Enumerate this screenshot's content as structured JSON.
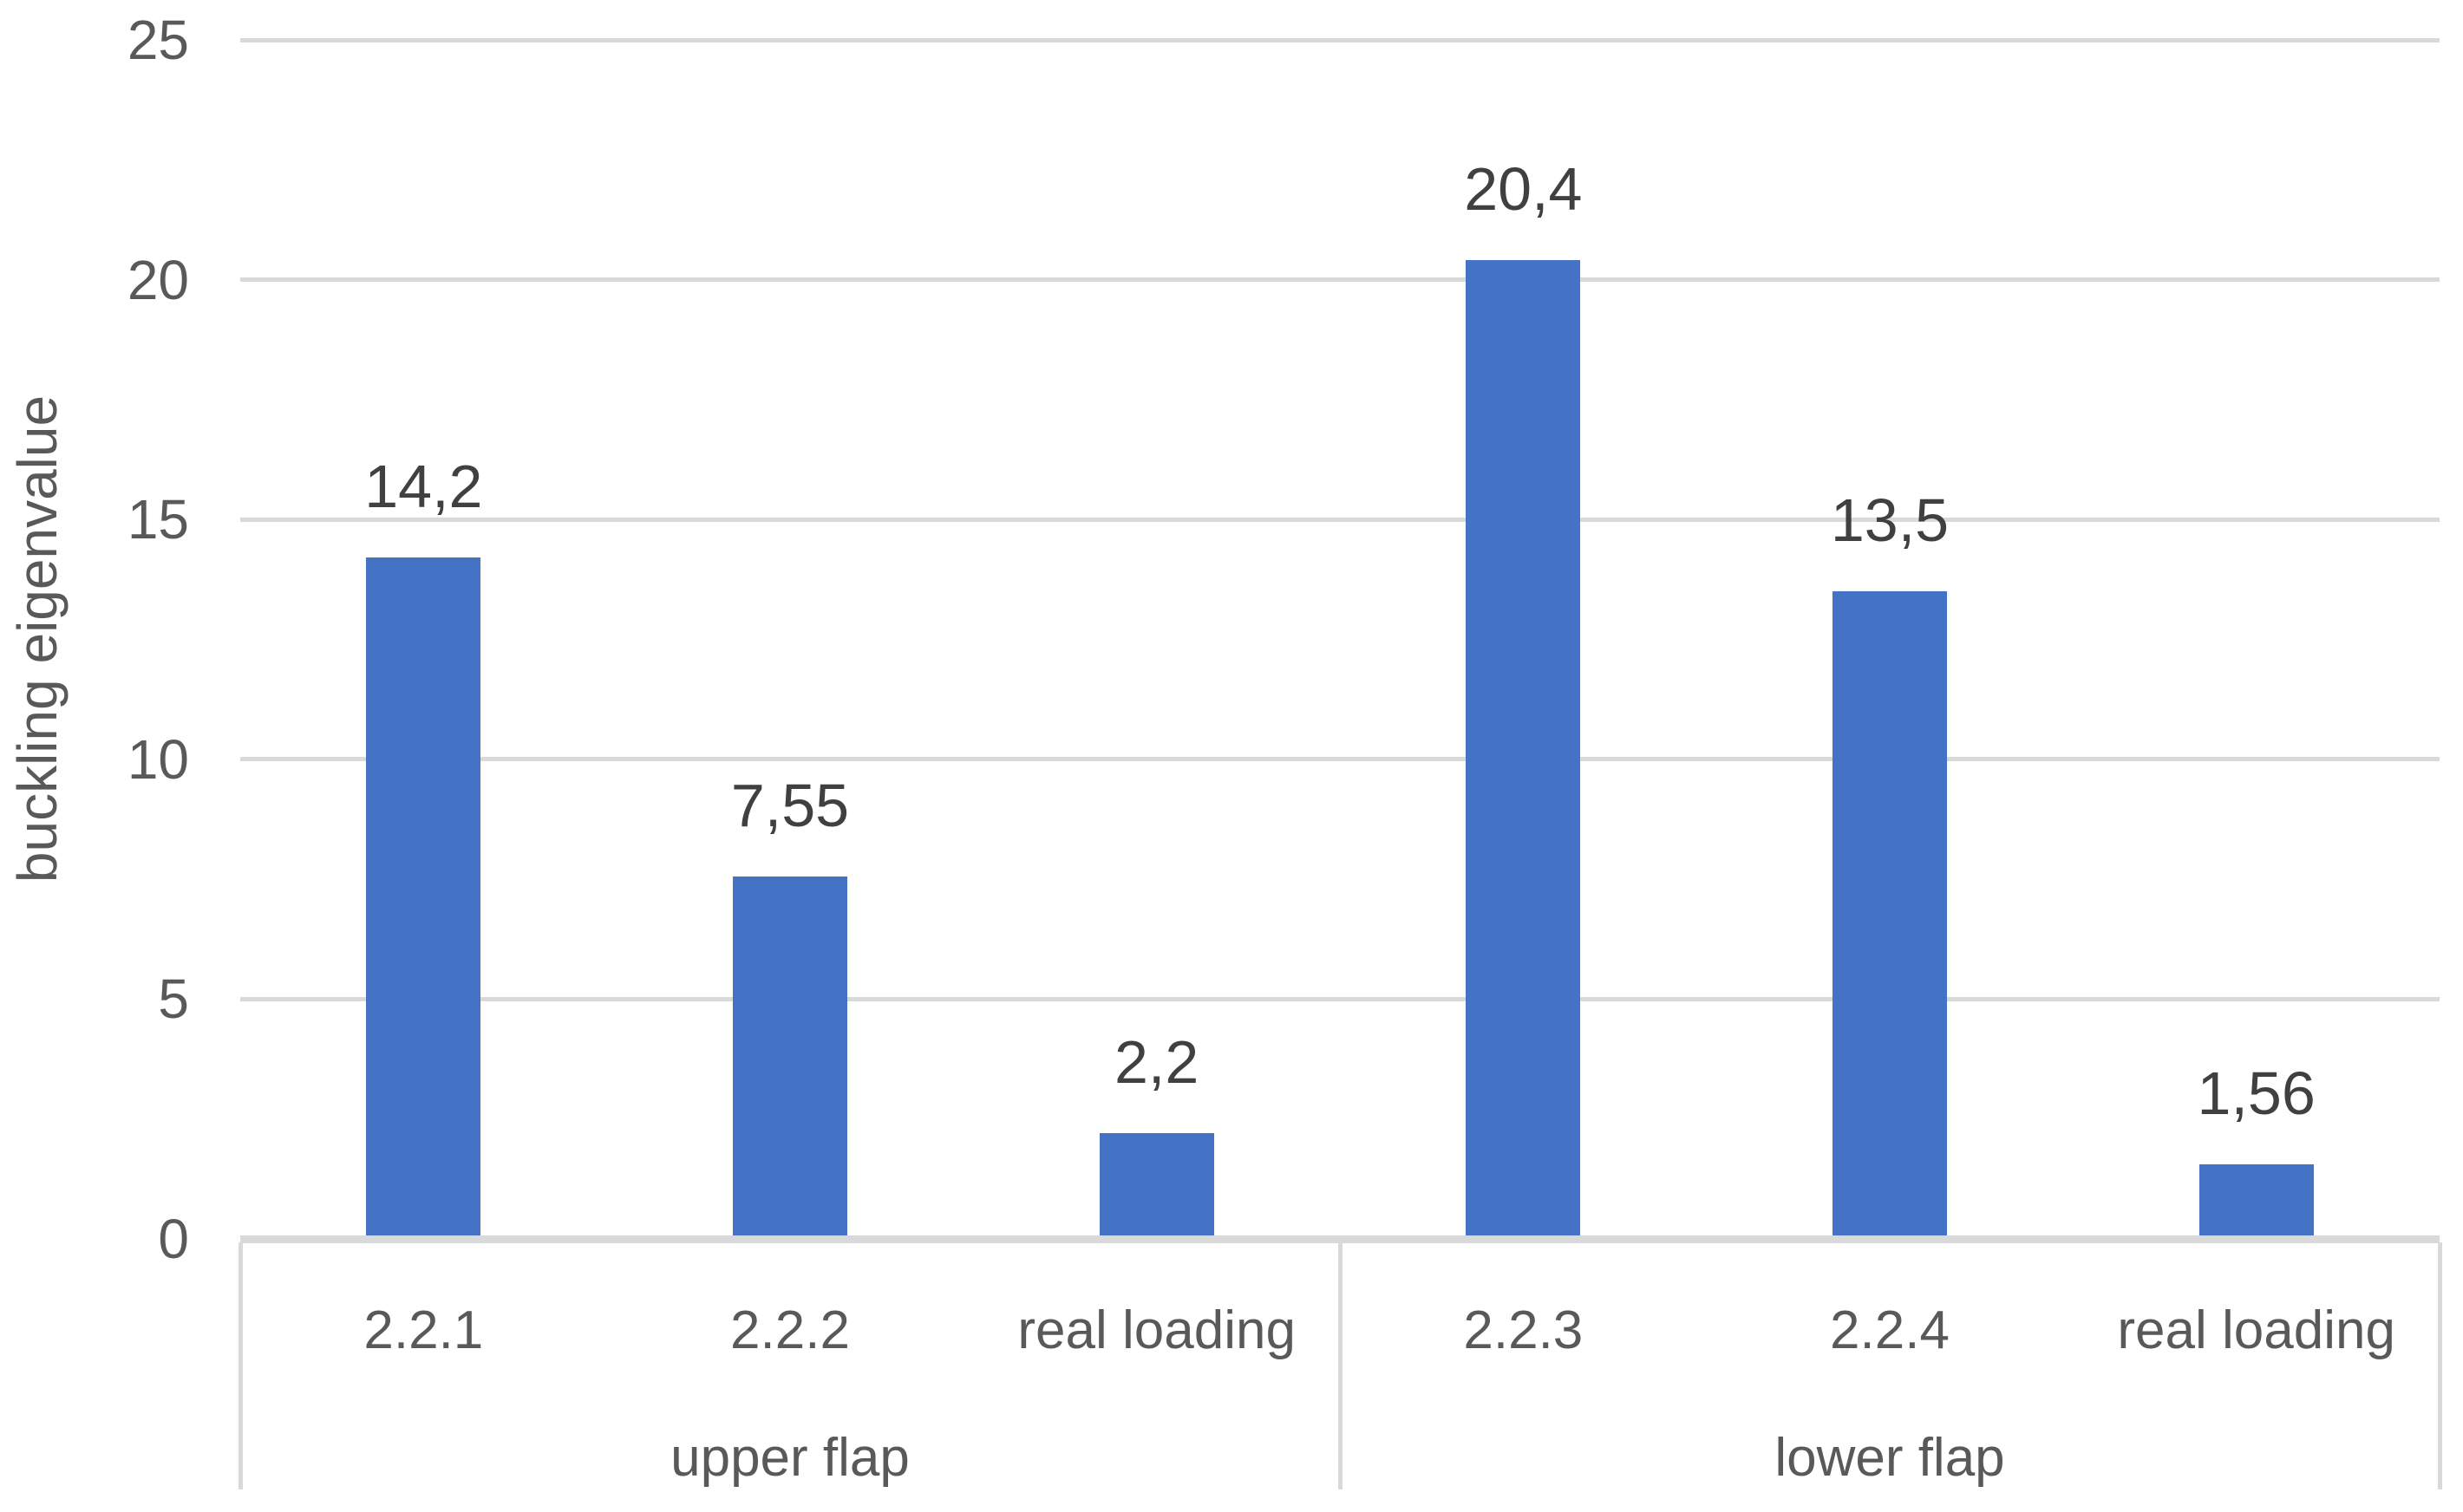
{
  "chart_data": {
    "type": "bar",
    "title": "",
    "xlabel": "",
    "ylabel": "buckling eigenvalue",
    "ylim": [
      0,
      25
    ],
    "yticks": [
      0,
      5,
      10,
      15,
      20,
      25
    ],
    "grid": true,
    "legend_position": "none",
    "categories": [
      "2.2.1",
      "2.2.2",
      "real loading",
      "2.2.3",
      "2.2.4",
      "real loading"
    ],
    "values": [
      14.2,
      7.55,
      2.2,
      20.4,
      13.5,
      1.56
    ],
    "groups": [
      {
        "label": "upper flap",
        "bars": [
          {
            "category": "2.2.1",
            "value": 14.2,
            "value_label": "14,2"
          },
          {
            "category": "2.2.2",
            "value": 7.55,
            "value_label": "7,55"
          },
          {
            "category": "real loading",
            "value": 2.2,
            "value_label": "2,2"
          }
        ]
      },
      {
        "label": "lower flap",
        "bars": [
          {
            "category": "2.2.3",
            "value": 20.4,
            "value_label": "20,4"
          },
          {
            "category": "2.2.4",
            "value": 13.5,
            "value_label": "13,5"
          },
          {
            "category": "real loading",
            "value": 1.56,
            "value_label": "1,56"
          }
        ]
      }
    ],
    "colors": {
      "bar": "#4472C4",
      "gridline": "#D9D9D9",
      "axis_line": "#D9D9D9",
      "tick_text": "#595959",
      "category_text": "#595959",
      "data_label_text": "#404040"
    }
  }
}
